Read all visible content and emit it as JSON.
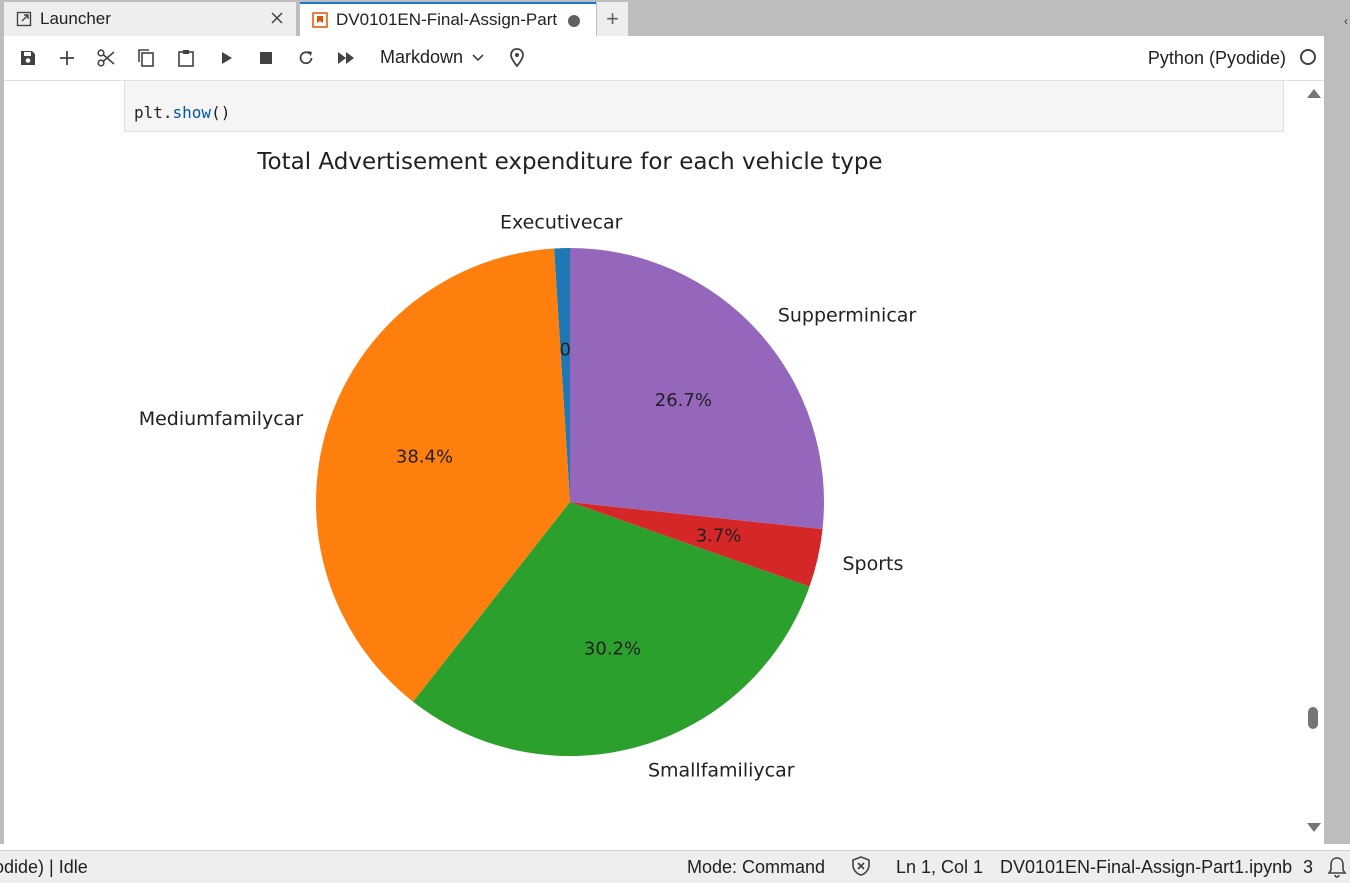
{
  "tabs": [
    {
      "label": "Launcher",
      "icon": "launcher-icon",
      "active": false
    },
    {
      "label": "DV0101EN-Final-Assign-Part",
      "icon": "notebook-icon",
      "active": true,
      "unsaved": true
    }
  ],
  "toolbar": {
    "buttons": [
      "save-icon",
      "add-cell-icon",
      "cut-icon",
      "copy-icon",
      "paste-icon",
      "run-icon",
      "stop-icon",
      "restart-icon",
      "fast-forward-icon"
    ],
    "cell_type": "Markdown",
    "kernel_name": "Python (Pyodide)"
  },
  "code": {
    "object": "plt.",
    "method": "show",
    "args": "()"
  },
  "chart_data": {
    "type": "pie",
    "title": "Total Advertisement expenditure for each vehicle type",
    "categories": [
      "Executivecar",
      "Mediumfamilycar",
      "Smallfamiliycar",
      "Sports",
      "Supperminicar"
    ],
    "values": [
      1.0,
      38.4,
      30.2,
      3.7,
      26.7
    ],
    "labels": [
      "1.0%",
      "38.4%",
      "30.2%",
      "3.7%",
      "26.7%"
    ],
    "colors": [
      "#1f77b4",
      "#ff7f0e",
      "#2ca02c",
      "#d62728",
      "#9467bd"
    ],
    "start_angle_deg": 90,
    "direction": "counterclockwise"
  },
  "status": {
    "kernel": "odide) | Idle",
    "mode": "Mode: Command",
    "position": "Ln 1, Col 1",
    "file": "DV0101EN-Final-Assign-Part1.ipynb",
    "count": "3"
  }
}
